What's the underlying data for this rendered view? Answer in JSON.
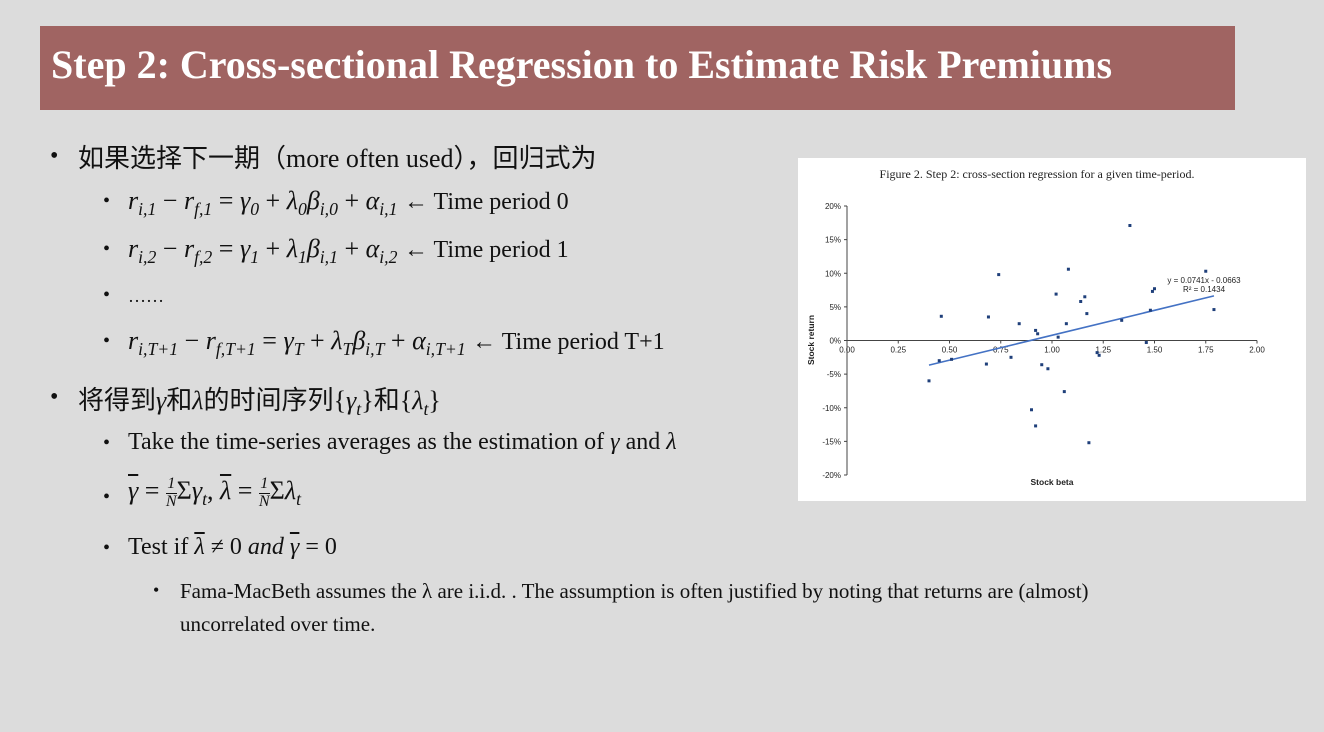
{
  "slide": {
    "title": "Step 2: Cross-sectional Regression to Estimate Risk Premiums",
    "bullet_char": "•",
    "intro": "如果选择下一期（more often used），回归式为",
    "eq_period0_label": "← Time period 0",
    "eq_period1_label": "← Time period 1",
    "ellipsis": "……",
    "eq_periodT_label": "← Time period T+1",
    "series_text_cn1": "将得到",
    "series_text_cn2": "和",
    "series_text_cn3": "的时间序列",
    "series_text_cn4": "和",
    "take_avg_text": "Take the time-series averages as the estimation of",
    "and_text": "and",
    "test_text": "Test if",
    "test_and": "and",
    "fama_line1": "Fama-MacBeth assumes the λ are i.i.d. . The assumption is often justified by noting that returns are (almost)",
    "fama_line2": "uncorrelated over time."
  },
  "chart_data": {
    "type": "scatter",
    "title": "Figure 2. Step 2: cross-section regression for a given time-period.",
    "xlabel": "Stock beta",
    "ylabel": "Stock return",
    "xlim": [
      0,
      2
    ],
    "ylim": [
      -0.2,
      0.2
    ],
    "x_ticks": [
      "0.00",
      "0.25",
      "0.50",
      "0.75",
      "1.00",
      "1.25",
      "1.50",
      "1.75",
      "2.00"
    ],
    "y_ticks": [
      "20%",
      "15%",
      "10%",
      "5%",
      "0%",
      "-5%",
      "-10%",
      "-15%",
      "-20%"
    ],
    "points": [
      [
        0.4,
        -0.06
      ],
      [
        0.45,
        -0.03
      ],
      [
        0.46,
        0.036
      ],
      [
        0.51,
        -0.028
      ],
      [
        0.68,
        -0.035
      ],
      [
        0.69,
        0.035
      ],
      [
        0.74,
        0.098
      ],
      [
        0.8,
        -0.025
      ],
      [
        0.84,
        0.025
      ],
      [
        0.9,
        -0.103
      ],
      [
        0.92,
        0.015
      ],
      [
        0.92,
        -0.127
      ],
      [
        0.93,
        0.01
      ],
      [
        0.95,
        -0.036
      ],
      [
        0.98,
        -0.042
      ],
      [
        1.02,
        0.069
      ],
      [
        1.03,
        0.005
      ],
      [
        1.06,
        -0.076
      ],
      [
        1.07,
        0.025
      ],
      [
        1.08,
        0.106
      ],
      [
        1.14,
        0.058
      ],
      [
        1.16,
        0.065
      ],
      [
        1.17,
        0.04
      ],
      [
        1.18,
        -0.152
      ],
      [
        1.22,
        -0.018
      ],
      [
        1.23,
        -0.022
      ],
      [
        1.34,
        0.03
      ],
      [
        1.38,
        0.171
      ],
      [
        1.46,
        -0.003
      ],
      [
        1.48,
        0.045
      ],
      [
        1.49,
        0.073
      ],
      [
        1.5,
        0.077
      ],
      [
        1.75,
        0.103
      ],
      [
        1.79,
        0.046
      ]
    ],
    "trendline": {
      "slope": 0.0741,
      "intercept": -0.0663,
      "x_range": [
        0.4,
        1.79
      ],
      "equation": "y = 0.0741x - 0.0663",
      "r2": "R² = 0.1434"
    },
    "colors": {
      "points": "#1f3f7a",
      "trend": "#4472c4",
      "axis": "#444444"
    },
    "grid": false,
    "legend": "none"
  }
}
